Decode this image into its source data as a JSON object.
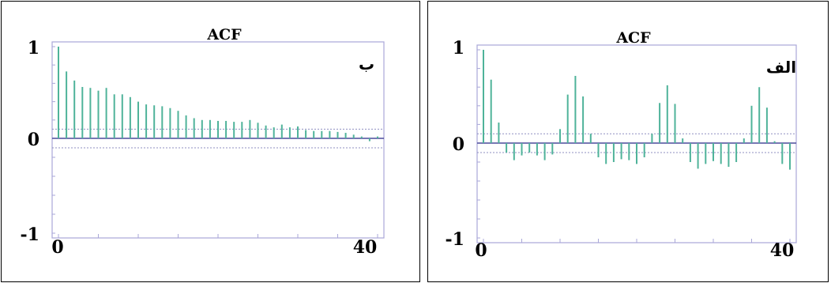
{
  "panels": [
    {
      "title": "ACF",
      "label": "ب",
      "x_ticks": [
        "0",
        "40"
      ],
      "y_ticks": [
        "1",
        "0",
        "-1"
      ]
    },
    {
      "title": "ACF",
      "label": "الف",
      "x_ticks": [
        "0",
        "40"
      ],
      "y_ticks": [
        "1",
        "0",
        "-1"
      ]
    }
  ],
  "colors": {
    "bar": "#4fb39a",
    "axis_frame": "#a9a7d8",
    "confidence_band": "#8f8fc0",
    "zero_line": "#4c4c9c"
  },
  "chart_data": [
    {
      "type": "bar",
      "title": "ACF",
      "xlim": [
        0,
        40
      ],
      "ylim": [
        -1,
        1
      ],
      "confidence_band": 0.1,
      "x": [
        0,
        1,
        2,
        3,
        4,
        5,
        6,
        7,
        8,
        9,
        10,
        11,
        12,
        13,
        14,
        15,
        16,
        17,
        18,
        19,
        20,
        21,
        22,
        23,
        24,
        25,
        26,
        27,
        28,
        29,
        30,
        31,
        32,
        33,
        34,
        35,
        36,
        37,
        38,
        39,
        40
      ],
      "values": [
        1.0,
        0.73,
        0.63,
        0.56,
        0.55,
        0.52,
        0.55,
        0.48,
        0.48,
        0.45,
        0.4,
        0.37,
        0.36,
        0.35,
        0.33,
        0.3,
        0.25,
        0.22,
        0.2,
        0.2,
        0.19,
        0.19,
        0.18,
        0.18,
        0.2,
        0.17,
        0.14,
        0.12,
        0.15,
        0.12,
        0.13,
        0.09,
        0.08,
        0.08,
        0.08,
        0.07,
        0.06,
        0.04,
        0.02,
        -0.03,
        0.02
      ]
    },
    {
      "type": "bar",
      "title": "ACF",
      "xlim": [
        0,
        40
      ],
      "ylim": [
        -1,
        1
      ],
      "confidence_band": 0.1,
      "x": [
        0,
        1,
        2,
        3,
        4,
        5,
        6,
        7,
        8,
        9,
        10,
        11,
        12,
        13,
        14,
        15,
        16,
        17,
        18,
        19,
        20,
        21,
        22,
        23,
        24,
        25,
        26,
        27,
        28,
        29,
        30,
        31,
        32,
        33,
        34,
        35,
        36,
        37,
        38,
        39,
        40
      ],
      "values": [
        1.0,
        0.68,
        0.22,
        -0.1,
        -0.18,
        -0.13,
        -0.1,
        -0.13,
        -0.18,
        -0.12,
        0.15,
        0.52,
        0.72,
        0.5,
        0.1,
        -0.15,
        -0.22,
        -0.2,
        -0.17,
        -0.18,
        -0.22,
        -0.15,
        0.1,
        0.43,
        0.62,
        0.42,
        0.05,
        -0.2,
        -0.27,
        -0.22,
        -0.19,
        -0.22,
        -0.25,
        -0.2,
        0.05,
        0.4,
        0.6,
        0.38,
        0.02,
        -0.22,
        -0.28
      ]
    }
  ]
}
